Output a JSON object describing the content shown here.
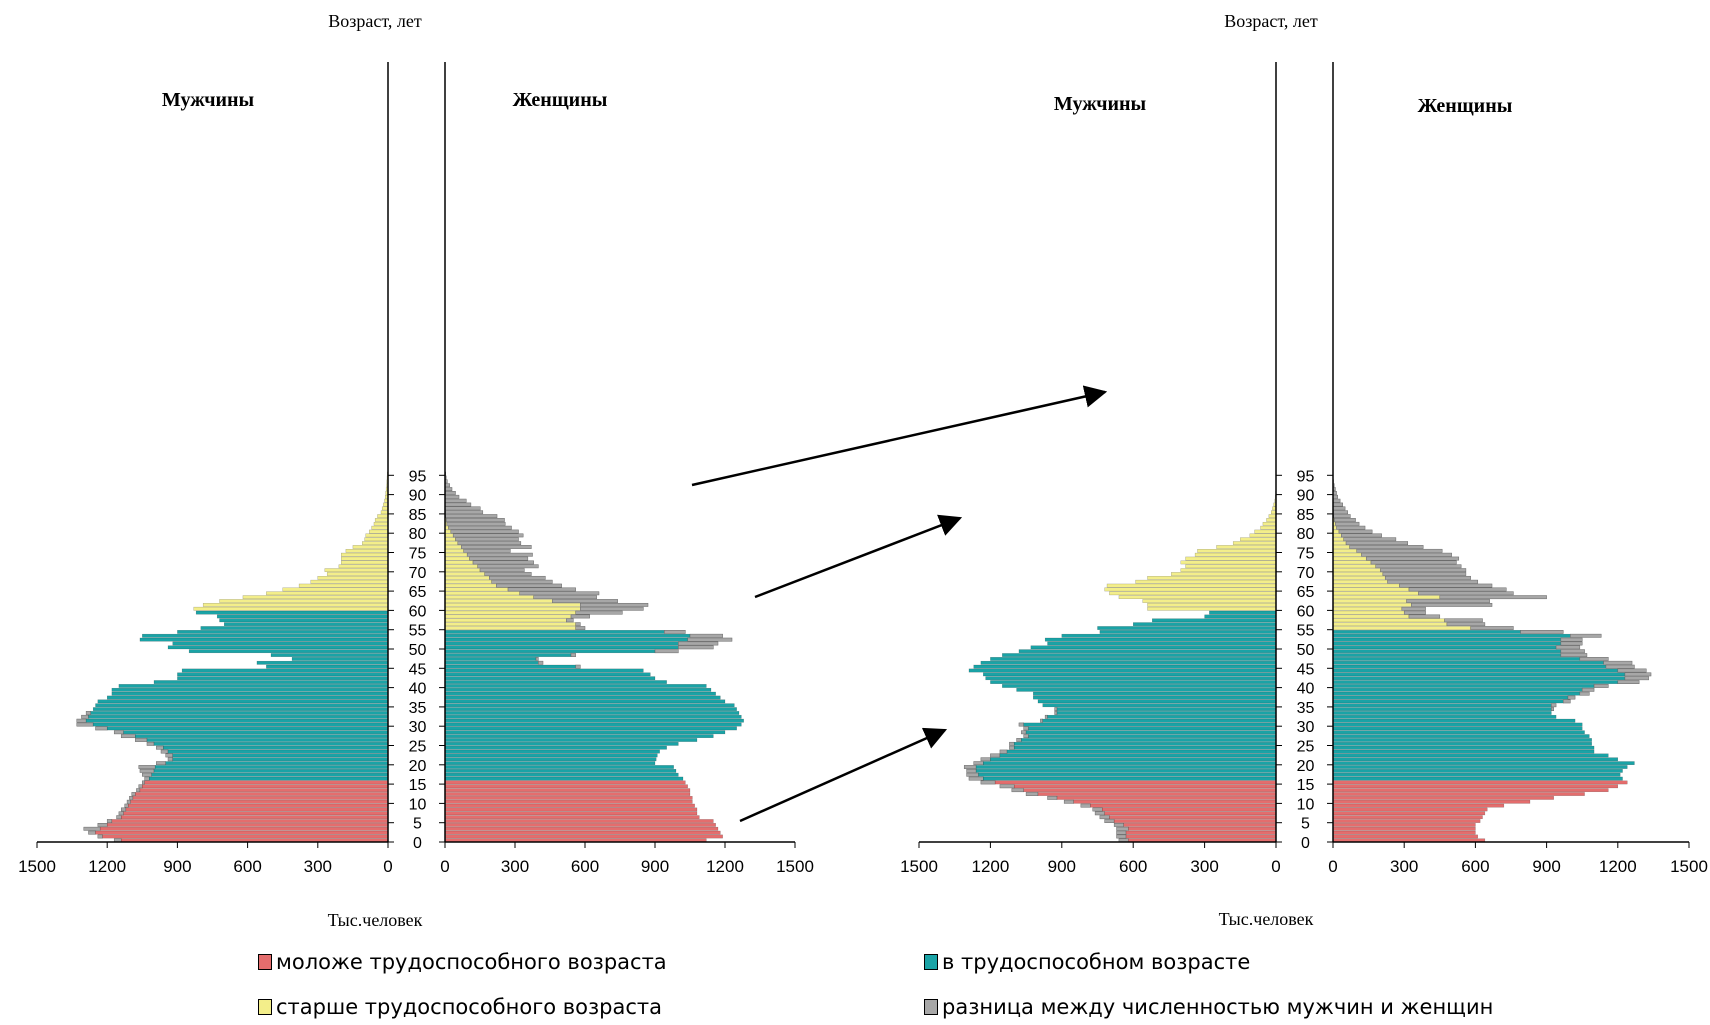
{
  "colors": {
    "young": "#e46d6d",
    "working": "#1aa3a6",
    "old": "#f3ee8a",
    "diff": "#a7a7a7"
  },
  "legend": {
    "young": "моложе трудоспособного возраста",
    "working": "в трудоспособном возрасте",
    "old": "старше трудоспособного возраста",
    "diff": "разница между численностью мужчин и женщин"
  },
  "chart_data": [
    {
      "type": "bar",
      "title": "",
      "ylabel": "Возраст, лет",
      "xlabel": "Тыс.человек",
      "male_label": "Мужчины",
      "female_label": "Женщины",
      "xlim": [
        0,
        1500
      ],
      "xticks_male": [
        "1500",
        "1200",
        "900",
        "600",
        "300",
        "0"
      ],
      "xticks_female": [
        "0",
        "300",
        "600",
        "900",
        "1200",
        "1500"
      ],
      "age_ticks": [
        "0",
        "5",
        "10",
        "15",
        "20",
        "25",
        "30",
        "35",
        "40",
        "45",
        "50",
        "55",
        "60",
        "65",
        "70",
        "75",
        "80",
        "85",
        "90",
        "95"
      ],
      "working_age": {
        "male": [
          16,
          59
        ],
        "female": [
          16,
          54
        ]
      },
      "male": [
        1140,
        1220,
        1250,
        1230,
        1200,
        1180,
        1140,
        1130,
        1120,
        1110,
        1100,
        1090,
        1080,
        1060,
        1050,
        1040,
        1020,
        1010,
        1000,
        995,
        950,
        920,
        920,
        940,
        960,
        1000,
        1030,
        1080,
        1130,
        1200,
        1260,
        1290,
        1280,
        1270,
        1260,
        1250,
        1240,
        1200,
        1180,
        1180,
        1150,
        1000,
        900,
        900,
        880,
        520,
        560,
        410,
        500,
        850,
        940,
        920,
        1060,
        1050,
        900,
        800,
        700,
        720,
        730,
        820,
        830,
        790,
        720,
        620,
        520,
        450,
        380,
        330,
        300,
        260,
        270,
        210,
        200,
        200,
        200,
        180,
        150,
        110,
        100,
        95,
        80,
        70,
        60,
        55,
        45,
        30,
        25,
        20,
        15,
        12,
        10,
        8,
        6,
        5,
        4,
        3
      ],
      "female": [
        1120,
        1190,
        1180,
        1170,
        1160,
        1150,
        1090,
        1080,
        1080,
        1070,
        1060,
        1060,
        1050,
        1050,
        1040,
        1030,
        1020,
        1000,
        990,
        980,
        900,
        905,
        910,
        920,
        950,
        1000,
        1080,
        1150,
        1200,
        1250,
        1270,
        1280,
        1270,
        1260,
        1250,
        1240,
        1200,
        1180,
        1160,
        1140,
        1120,
        950,
        900,
        880,
        850,
        560,
        400,
        390,
        540,
        900,
        1000,
        1000,
        1040,
        1050,
        940,
        560,
        560,
        520,
        540,
        560,
        580,
        580,
        460,
        380,
        320,
        270,
        220,
        200,
        190,
        170,
        150,
        140,
        120,
        105,
        95,
        80,
        70,
        55,
        45,
        35,
        25,
        15,
        8,
        5,
        3,
        2,
        1,
        1,
        1,
        0,
        0,
        0,
        0,
        0,
        0,
        0
      ],
      "male_diff": [
        30,
        20,
        30,
        70,
        40,
        20,
        20,
        20,
        20,
        15,
        15,
        15,
        15,
        15,
        15,
        10,
        20,
        40,
        60,
        70,
        40,
        20,
        30,
        30,
        30,
        30,
        50,
        60,
        40,
        50,
        70,
        40,
        30,
        20,
        0,
        0,
        0,
        0,
        0,
        0,
        0,
        0,
        0,
        0,
        0,
        0,
        0,
        0,
        0,
        0,
        0,
        0,
        0,
        0,
        0,
        0,
        0,
        0,
        0,
        0,
        0,
        0,
        0,
        0,
        0,
        0,
        0,
        0,
        0,
        0,
        0,
        0,
        0,
        0,
        0,
        0,
        0,
        0,
        0,
        0,
        0,
        0,
        0,
        0,
        0,
        0,
        0,
        0,
        0,
        0,
        0,
        0,
        0,
        0,
        0,
        0
      ],
      "female_diff": [
        0,
        0,
        0,
        0,
        0,
        0,
        0,
        0,
        0,
        0,
        0,
        0,
        0,
        0,
        0,
        0,
        0,
        0,
        0,
        0,
        0,
        0,
        0,
        0,
        0,
        0,
        0,
        0,
        0,
        0,
        0,
        0,
        0,
        0,
        0,
        0,
        0,
        0,
        0,
        0,
        0,
        0,
        0,
        0,
        0,
        20,
        20,
        10,
        20,
        100,
        150,
        170,
        190,
        140,
        90,
        40,
        20,
        30,
        80,
        200,
        270,
        290,
        280,
        270,
        340,
        290,
        280,
        260,
        240,
        200,
        190,
        260,
        260,
        250,
        280,
        200,
        300,
        270,
        270,
        300,
        290,
        270,
        250,
        250,
        220,
        160,
        150,
        110,
        90,
        60,
        45,
        30,
        20,
        10,
        5,
        3
      ]
    },
    {
      "type": "bar",
      "title": "",
      "ylabel": "Возраст, лет",
      "xlabel": "Тыс.человек",
      "male_label": "Мужчины",
      "female_label": "Женщины",
      "xlim": [
        0,
        1500
      ],
      "xticks_male": [
        "1500",
        "1200",
        "900",
        "600",
        "300",
        "0"
      ],
      "xticks_female": [
        "0",
        "300",
        "600",
        "900",
        "1200",
        "1500"
      ],
      "age_ticks": [
        "0",
        "5",
        "10",
        "15",
        "20",
        "25",
        "30",
        "35",
        "40",
        "45",
        "50",
        "55",
        "60",
        "65",
        "70",
        "75",
        "80",
        "85",
        "90",
        "95"
      ],
      "working_age": {
        "male": [
          16,
          59
        ],
        "female": [
          16,
          54
        ]
      },
      "male": [
        620,
        630,
        630,
        620,
        640,
        680,
        700,
        720,
        730,
        780,
        850,
        920,
        1000,
        1060,
        1100,
        1180,
        1230,
        1250,
        1260,
        1260,
        1230,
        1200,
        1160,
        1130,
        1100,
        1100,
        1070,
        1040,
        1050,
        1040,
        1060,
        980,
        960,
        920,
        920,
        980,
        1000,
        1020,
        1020,
        1090,
        1150,
        1200,
        1220,
        1230,
        1290,
        1270,
        1240,
        1200,
        1150,
        1080,
        1030,
        960,
        970,
        900,
        740,
        750,
        600,
        520,
        300,
        280,
        540,
        540,
        560,
        660,
        700,
        720,
        710,
        590,
        540,
        440,
        400,
        380,
        400,
        380,
        340,
        330,
        250,
        180,
        150,
        110,
        90,
        65,
        55,
        40,
        30,
        20,
        15,
        10,
        5,
        3,
        2,
        1,
        1,
        0,
        0,
        0
      ],
      "female": [
        640,
        610,
        600,
        600,
        600,
        620,
        630,
        640,
        650,
        720,
        830,
        930,
        1060,
        1160,
        1200,
        1240,
        1220,
        1210,
        1220,
        1240,
        1270,
        1200,
        1160,
        1100,
        1100,
        1090,
        1090,
        1080,
        1060,
        1050,
        1050,
        1020,
        940,
        920,
        920,
        920,
        970,
        990,
        1040,
        1050,
        1100,
        1200,
        1230,
        1230,
        1200,
        1150,
        1140,
        1040,
        960,
        960,
        940,
        960,
        960,
        1000,
        790,
        580,
        480,
        470,
        320,
        300,
        290,
        330,
        310,
        450,
        360,
        320,
        280,
        230,
        220,
        210,
        200,
        180,
        160,
        140,
        120,
        100,
        70,
        55,
        45,
        35,
        25,
        15,
        10,
        5,
        3,
        2,
        1,
        1,
        0,
        0,
        0,
        0,
        0,
        0,
        0,
        0
      ],
      "male_diff": [
        40,
        40,
        40,
        50,
        40,
        40,
        40,
        40,
        40,
        40,
        40,
        40,
        50,
        50,
        60,
        60,
        60,
        50,
        40,
        50,
        40,
        40,
        40,
        30,
        20,
        20,
        20,
        20,
        20,
        20,
        20,
        10,
        10,
        10,
        10,
        0,
        0,
        0,
        0,
        0,
        0,
        0,
        0,
        0,
        0,
        0,
        0,
        0,
        0,
        0,
        0,
        0,
        0,
        0,
        0,
        0,
        0,
        0,
        0,
        0,
        0,
        0,
        0,
        0,
        0,
        0,
        0,
        0,
        0,
        0,
        0,
        0,
        0,
        0,
        0,
        0,
        0,
        0,
        0,
        0,
        0,
        0,
        0,
        0,
        0,
        0,
        0,
        0,
        0,
        0,
        0,
        0,
        0,
        0,
        0,
        0
      ],
      "female_diff": [
        0,
        0,
        0,
        0,
        0,
        0,
        0,
        0,
        0,
        0,
        0,
        0,
        0,
        0,
        0,
        0,
        0,
        0,
        0,
        0,
        0,
        0,
        0,
        0,
        0,
        0,
        0,
        0,
        0,
        0,
        0,
        0,
        0,
        0,
        10,
        20,
        30,
        30,
        40,
        50,
        60,
        90,
        100,
        110,
        120,
        120,
        120,
        120,
        110,
        100,
        100,
        90,
        90,
        130,
        180,
        180,
        160,
        160,
        130,
        90,
        100,
        340,
        350,
        450,
        400,
        410,
        390,
        380,
        360,
        350,
        360,
        360,
        360,
        390,
        380,
        360,
        310,
        260,
        220,
        170,
        140,
        120,
        100,
        90,
        70,
        60,
        50,
        40,
        30,
        20,
        15,
        10,
        5,
        2,
        1,
        0
      ]
    }
  ]
}
